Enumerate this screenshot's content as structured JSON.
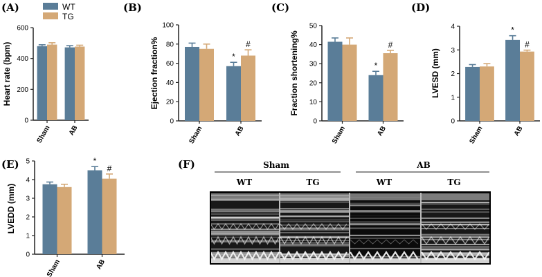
{
  "colors": {
    "wt": "#5a7d98",
    "tg": "#d4a876",
    "axis": "#222222"
  },
  "legend": [
    {
      "label": "WT",
      "color": "#5a7d98"
    },
    {
      "label": "TG",
      "color": "#d4a876"
    }
  ],
  "chart_data": [
    {
      "panel": "(A)",
      "type": "bar",
      "categories": [
        "Sham",
        "AB"
      ],
      "series": [
        {
          "name": "WT",
          "values": [
            480,
            472
          ],
          "errors": [
            9,
            11
          ]
        },
        {
          "name": "TG",
          "values": [
            490,
            477
          ],
          "errors": [
            12,
            9
          ]
        }
      ],
      "ylabel": "Heart rate (bpm)",
      "ylim": [
        0,
        600
      ],
      "yticks": [
        0,
        200,
        400,
        600
      ],
      "annotations": []
    },
    {
      "panel": "(B)",
      "type": "bar",
      "categories": [
        "Sham",
        "AB"
      ],
      "series": [
        {
          "name": "WT",
          "values": [
            77,
            57
          ],
          "errors": [
            4,
            4
          ]
        },
        {
          "name": "TG",
          "values": [
            75,
            68
          ],
          "errors": [
            5,
            6
          ]
        }
      ],
      "ylabel": "Ejection fraction%",
      "ylim": [
        0,
        100
      ],
      "yticks": [
        0,
        20,
        40,
        60,
        80,
        100
      ],
      "annotations": [
        {
          "series": 0,
          "category": 1,
          "text": "*"
        },
        {
          "series": 1,
          "category": 1,
          "text": "#"
        }
      ]
    },
    {
      "panel": "(C)",
      "type": "bar",
      "categories": [
        "Sham",
        "AB"
      ],
      "series": [
        {
          "name": "WT",
          "values": [
            41.5,
            24
          ],
          "errors": [
            2,
            2
          ]
        },
        {
          "name": "TG",
          "values": [
            40,
            35.5
          ],
          "errors": [
            3.5,
            1.5
          ]
        }
      ],
      "ylabel": "Fraction shortening%",
      "ylim": [
        0,
        50
      ],
      "yticks": [
        0,
        10,
        20,
        30,
        40,
        50
      ],
      "annotations": [
        {
          "series": 0,
          "category": 1,
          "text": "*"
        },
        {
          "series": 1,
          "category": 1,
          "text": "#"
        }
      ]
    },
    {
      "panel": "(D)",
      "type": "bar",
      "categories": [
        "Sham",
        "AB"
      ],
      "series": [
        {
          "name": "WT",
          "values": [
            2.28,
            3.42
          ],
          "errors": [
            0.1,
            0.18
          ]
        },
        {
          "name": "TG",
          "values": [
            2.3,
            2.93
          ],
          "errors": [
            0.12,
            0.06
          ]
        }
      ],
      "ylabel": "LVESD (mm)",
      "ylim": [
        0,
        4
      ],
      "yticks": [
        0,
        1,
        2,
        3,
        4
      ],
      "annotations": [
        {
          "series": 0,
          "category": 1,
          "text": "*"
        },
        {
          "series": 1,
          "category": 1,
          "text": "#"
        }
      ]
    },
    {
      "panel": "(E)",
      "type": "bar",
      "categories": [
        "Sham",
        "AB"
      ],
      "series": [
        {
          "name": "WT",
          "values": [
            3.75,
            4.5
          ],
          "errors": [
            0.12,
            0.2
          ]
        },
        {
          "name": "TG",
          "values": [
            3.6,
            4.05
          ],
          "errors": [
            0.15,
            0.25
          ]
        }
      ],
      "ylabel": "LVEDD (mm)",
      "ylim": [
        0,
        5
      ],
      "yticks": [
        0,
        1,
        2,
        3,
        4,
        5
      ],
      "annotations": [
        {
          "series": 0,
          "category": 1,
          "text": "*"
        },
        {
          "series": 1,
          "category": 1,
          "text": "#"
        }
      ]
    }
  ],
  "panel_f": {
    "label": "(F)",
    "groups": [
      "Sham",
      "AB"
    ],
    "columns": [
      "WT",
      "TG",
      "WT",
      "TG"
    ]
  }
}
